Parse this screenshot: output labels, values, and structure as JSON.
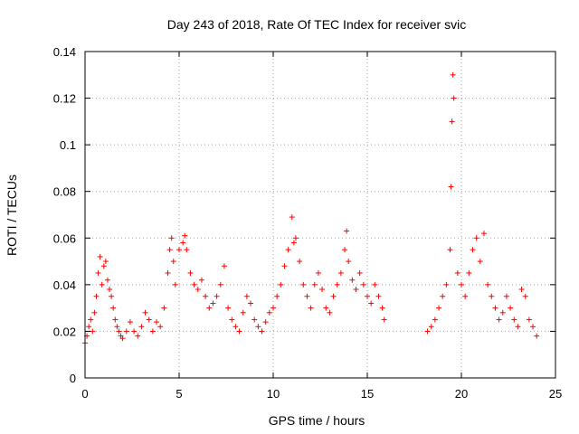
{
  "chart_data": {
    "type": "scatter",
    "title": "Day 243 of 2018, Rate Of TEC Index for receiver svic",
    "xlabel": "GPS time / hours",
    "ylabel": "ROTI / TECUs",
    "xlim": [
      0,
      25
    ],
    "ylim": [
      0,
      0.14
    ],
    "xticks": [
      0,
      5,
      10,
      15,
      20,
      25
    ],
    "yticks": [
      0,
      0.02,
      0.04,
      0.06,
      0.08,
      0.1,
      0.12,
      0.14
    ],
    "xtick_labels": [
      "0",
      "5",
      "10",
      "15",
      "20",
      "25"
    ],
    "ytick_labels": [
      "0",
      "0.02",
      "0.04",
      "0.06",
      "0.08",
      "0.1",
      "0.12",
      "0.14"
    ],
    "grid": true,
    "marker": "+",
    "color": "#ff0000",
    "data_gap_hours": [
      15.95,
      18.2
    ],
    "series": [
      {
        "name": "ROTI",
        "x": [
          0.0,
          0.1,
          0.2,
          0.3,
          0.4,
          0.5,
          0.6,
          0.7,
          0.8,
          0.9,
          1.0,
          1.1,
          1.2,
          1.3,
          1.4,
          1.5,
          1.6,
          1.7,
          1.8,
          1.9,
          2.0,
          2.2,
          2.4,
          2.6,
          2.8,
          3.0,
          3.2,
          3.4,
          3.6,
          3.8,
          4.0,
          4.2,
          4.4,
          4.5,
          4.6,
          4.7,
          4.8,
          5.0,
          5.2,
          5.3,
          5.4,
          5.6,
          5.8,
          6.0,
          6.2,
          6.4,
          6.6,
          6.8,
          7.0,
          7.2,
          7.4,
          7.6,
          7.8,
          8.0,
          8.2,
          8.4,
          8.6,
          8.8,
          9.0,
          9.2,
          9.4,
          9.6,
          9.8,
          10.0,
          10.2,
          10.4,
          10.6,
          10.8,
          11.0,
          11.1,
          11.2,
          11.4,
          11.6,
          11.8,
          12.0,
          12.2,
          12.4,
          12.6,
          12.8,
          13.0,
          13.2,
          13.4,
          13.6,
          13.8,
          13.9,
          14.0,
          14.2,
          14.4,
          14.6,
          14.8,
          15.0,
          15.2,
          15.4,
          15.6,
          15.8,
          15.9,
          18.2,
          18.4,
          18.6,
          18.8,
          19.0,
          19.2,
          19.4,
          19.45,
          19.5,
          19.55,
          19.6,
          19.8,
          20.0,
          20.2,
          20.4,
          20.6,
          20.8,
          21.0,
          21.2,
          21.4,
          21.6,
          21.8,
          22.0,
          22.2,
          22.4,
          22.6,
          22.8,
          23.0,
          23.2,
          23.4,
          23.6,
          23.8,
          24.0
        ],
        "y": [
          0.015,
          0.018,
          0.022,
          0.025,
          0.02,
          0.028,
          0.035,
          0.045,
          0.052,
          0.04,
          0.048,
          0.05,
          0.042,
          0.038,
          0.035,
          0.03,
          0.025,
          0.022,
          0.02,
          0.018,
          0.017,
          0.02,
          0.024,
          0.02,
          0.018,
          0.022,
          0.028,
          0.025,
          0.02,
          0.024,
          0.022,
          0.03,
          0.045,
          0.055,
          0.06,
          0.05,
          0.04,
          0.055,
          0.058,
          0.061,
          0.055,
          0.045,
          0.04,
          0.038,
          0.042,
          0.035,
          0.03,
          0.032,
          0.035,
          0.04,
          0.048,
          0.03,
          0.025,
          0.022,
          0.02,
          0.028,
          0.035,
          0.032,
          0.025,
          0.022,
          0.02,
          0.024,
          0.028,
          0.03,
          0.035,
          0.04,
          0.048,
          0.055,
          0.069,
          0.058,
          0.06,
          0.05,
          0.04,
          0.035,
          0.03,
          0.04,
          0.045,
          0.038,
          0.03,
          0.028,
          0.035,
          0.04,
          0.045,
          0.055,
          0.063,
          0.05,
          0.042,
          0.038,
          0.045,
          0.04,
          0.035,
          0.032,
          0.04,
          0.035,
          0.03,
          0.025,
          0.02,
          0.022,
          0.025,
          0.03,
          0.035,
          0.04,
          0.055,
          0.082,
          0.11,
          0.13,
          0.12,
          0.045,
          0.04,
          0.035,
          0.045,
          0.055,
          0.06,
          0.05,
          0.062,
          0.04,
          0.035,
          0.03,
          0.025,
          0.028,
          0.035,
          0.03,
          0.025,
          0.022,
          0.038,
          0.035,
          0.025,
          0.022,
          0.018
        ]
      }
    ]
  }
}
